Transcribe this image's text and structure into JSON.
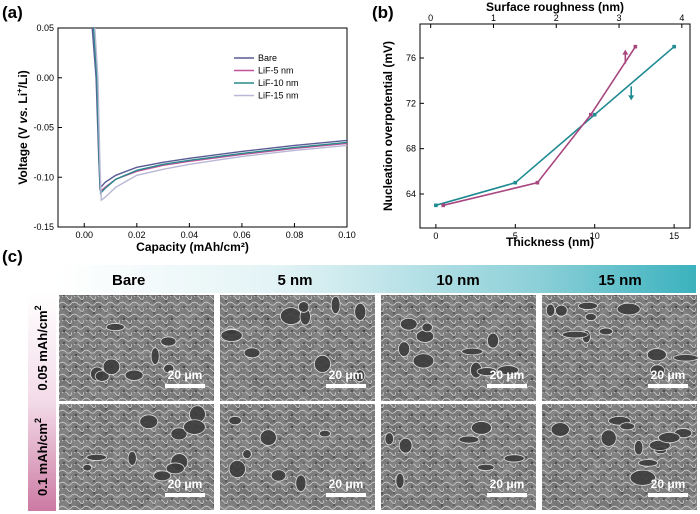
{
  "panel_labels": {
    "a": "(a)",
    "b": "(b)",
    "c": "(c)"
  },
  "chart_data": [
    {
      "type": "line",
      "panel": "(a)",
      "xlabel": "Capacity (mAh/cm²)",
      "ylabel_parts": [
        "Voltage (V ",
        "vs.",
        " Li",
        "+",
        "/Li)"
      ],
      "xlim": [
        -0.01,
        0.1
      ],
      "ylim": [
        -0.15,
        0.05
      ],
      "x_ticks": [
        0.0,
        0.02,
        0.04,
        0.06,
        0.08,
        0.1
      ],
      "x_tick_labels": [
        "0.00",
        "0.02",
        "0.04",
        "0.06",
        "0.08",
        "0.10"
      ],
      "y_ticks": [
        0.05,
        0.0,
        -0.05,
        -0.1,
        -0.15
      ],
      "y_tick_labels": [
        "0.05",
        "0.00",
        "-0.05",
        "-0.10",
        "-0.15"
      ],
      "legend_position": "right",
      "series": [
        {
          "name": "Bare",
          "color": "#5a5a96",
          "x": [
            0.003,
            0.0045,
            0.0055,
            0.006,
            0.008,
            0.012,
            0.02,
            0.03,
            0.04,
            0.06,
            0.08,
            0.1
          ],
          "y": [
            0.05,
            0.0,
            -0.08,
            -0.111,
            -0.105,
            -0.098,
            -0.09,
            -0.085,
            -0.081,
            -0.074,
            -0.068,
            -0.063
          ]
        },
        {
          "name": "LiF-5 nm",
          "color": "#c0509a",
          "x": [
            0.0035,
            0.0048,
            0.0057,
            0.0062,
            0.008,
            0.012,
            0.02,
            0.03,
            0.04,
            0.06,
            0.08,
            0.1
          ],
          "y": [
            0.05,
            0.0,
            -0.085,
            -0.114,
            -0.11,
            -0.102,
            -0.094,
            -0.088,
            -0.084,
            -0.077,
            -0.071,
            -0.066
          ]
        },
        {
          "name": "LiF-10 nm",
          "color": "#2a8a8a",
          "x": [
            0.0035,
            0.0048,
            0.0057,
            0.0062,
            0.008,
            0.012,
            0.02,
            0.03,
            0.04,
            0.06,
            0.08,
            0.1
          ],
          "y": [
            0.05,
            0.0,
            -0.085,
            -0.116,
            -0.111,
            -0.102,
            -0.093,
            -0.087,
            -0.083,
            -0.076,
            -0.07,
            -0.065
          ]
        },
        {
          "name": "LiF-15 nm",
          "color": "#b8b8d6",
          "x": [
            0.004,
            0.0052,
            0.006,
            0.0065,
            0.008,
            0.012,
            0.02,
            0.03,
            0.04,
            0.06,
            0.08,
            0.1
          ],
          "y": [
            0.05,
            0.0,
            -0.09,
            -0.123,
            -0.12,
            -0.11,
            -0.098,
            -0.092,
            -0.087,
            -0.079,
            -0.073,
            -0.068
          ]
        }
      ]
    },
    {
      "type": "line",
      "panel": "(b)",
      "xlabel": "Thickness (nm)",
      "x2label": "Surface roughness (nm)",
      "ylabel": "Nucleation overpotential (mV)",
      "xlim": [
        -1,
        16
      ],
      "x2lim": [
        -0.17,
        4.13
      ],
      "ylim": [
        61,
        79
      ],
      "x_ticks": [
        0,
        5,
        10,
        15
      ],
      "x_tick_labels": [
        "0",
        "5",
        "10",
        "15"
      ],
      "x2_ticks": [
        0,
        1,
        2,
        3,
        4
      ],
      "x2_tick_labels": [
        "0",
        "1",
        "2",
        "3",
        "4"
      ],
      "y_ticks": [
        64,
        68,
        72,
        76
      ],
      "y_tick_labels": [
        "64",
        "68",
        "72",
        "76"
      ],
      "series": [
        {
          "name": "Thickness",
          "color": "#1f8a92",
          "axis": "bottom",
          "arrow": "down",
          "x": [
            0,
            5,
            10,
            15
          ],
          "y": [
            63,
            65,
            71,
            77
          ]
        },
        {
          "name": "Surface roughness",
          "color": "#a8467f",
          "axis": "top",
          "arrow": "up",
          "x": [
            0.2,
            1.7,
            2.55,
            3.26
          ],
          "y": [
            63,
            65,
            71,
            77
          ]
        }
      ]
    }
  ],
  "sem": {
    "columns": [
      "Bare",
      "5 nm",
      "10 nm",
      "15 nm"
    ],
    "rows": [
      {
        "label": "0.05 mAh/cm",
        "sup": "2"
      },
      {
        "label": "0.1 mAh/cm",
        "sup": "2"
      }
    ],
    "scale_bar": "20 μm"
  }
}
